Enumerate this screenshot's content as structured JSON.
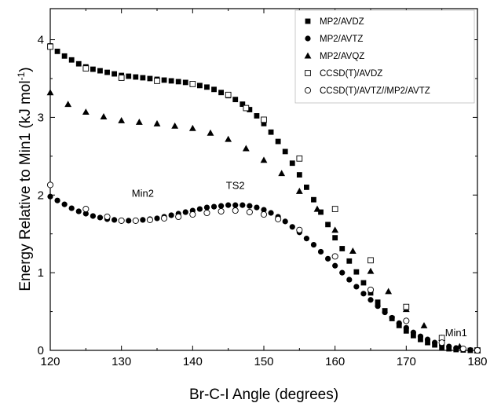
{
  "chart_data": {
    "type": "scatter",
    "xlabel": "Br-C-I Angle (degrees)",
    "ylabel_main": "Energy Relative to Min1 (kJ mol",
    "ylabel_sup": "-1",
    "ylabel_end": ")",
    "xlim": [
      120,
      180
    ],
    "ylim": [
      0,
      4.4
    ],
    "xticks": [
      120,
      130,
      140,
      150,
      160,
      170,
      180
    ],
    "yticks": [
      0,
      1,
      2,
      3,
      4
    ],
    "grid": false,
    "legend_position": "top-right",
    "annotations": [
      {
        "text": "Min2",
        "x": 133,
        "y": 1.98
      },
      {
        "text": "TS2",
        "x": 146,
        "y": 2.08
      },
      {
        "text": "Min1",
        "x": 177,
        "y": 0.18
      }
    ],
    "series": [
      {
        "name": "MP2/AVDZ",
        "marker": "filled-square",
        "x": [
          120,
          121,
          122,
          123,
          124,
          125,
          126,
          127,
          128,
          129,
          130,
          131,
          132,
          133,
          134,
          135,
          136,
          137,
          138,
          139,
          140,
          141,
          142,
          143,
          144,
          145,
          146,
          147,
          148,
          149,
          150,
          151,
          152,
          153,
          154,
          155,
          156,
          157,
          158,
          159,
          160,
          161,
          162,
          163,
          164,
          165,
          166,
          167,
          168,
          169,
          170,
          171,
          172,
          173,
          174,
          175,
          176,
          177,
          178,
          179,
          180
        ],
        "y": [
          3.92,
          3.85,
          3.79,
          3.74,
          3.69,
          3.65,
          3.62,
          3.6,
          3.58,
          3.56,
          3.54,
          3.53,
          3.52,
          3.51,
          3.5,
          3.49,
          3.48,
          3.47,
          3.46,
          3.45,
          3.43,
          3.41,
          3.39,
          3.36,
          3.32,
          3.28,
          3.23,
          3.17,
          3.1,
          3.02,
          2.92,
          2.81,
          2.69,
          2.56,
          2.41,
          2.26,
          2.1,
          1.94,
          1.78,
          1.62,
          1.45,
          1.31,
          1.15,
          1.01,
          0.87,
          0.74,
          0.62,
          0.51,
          0.41,
          0.32,
          0.25,
          0.19,
          0.14,
          0.1,
          0.07,
          0.04,
          0.02,
          0.01,
          0.005,
          0.0,
          0.0
        ]
      },
      {
        "name": "MP2/AVTZ",
        "marker": "filled-circle",
        "x": [
          120,
          121,
          122,
          123,
          124,
          125,
          126,
          127,
          128,
          129,
          130,
          131,
          132,
          133,
          134,
          135,
          136,
          137,
          138,
          139,
          140,
          141,
          142,
          143,
          144,
          145,
          146,
          147,
          148,
          149,
          150,
          151,
          152,
          153,
          154,
          155,
          156,
          157,
          158,
          159,
          160,
          161,
          162,
          163,
          164,
          165,
          166,
          167,
          168,
          169,
          170,
          171,
          172,
          173,
          174,
          175,
          176,
          177,
          178,
          179,
          180
        ],
        "y": [
          1.98,
          1.93,
          1.88,
          1.83,
          1.79,
          1.76,
          1.73,
          1.71,
          1.69,
          1.68,
          1.67,
          1.67,
          1.67,
          1.68,
          1.69,
          1.7,
          1.72,
          1.74,
          1.76,
          1.78,
          1.8,
          1.82,
          1.84,
          1.85,
          1.86,
          1.87,
          1.87,
          1.87,
          1.86,
          1.84,
          1.81,
          1.77,
          1.72,
          1.66,
          1.59,
          1.52,
          1.44,
          1.36,
          1.27,
          1.18,
          1.09,
          1.0,
          0.91,
          0.82,
          0.73,
          0.65,
          0.57,
          0.49,
          0.42,
          0.35,
          0.29,
          0.23,
          0.18,
          0.14,
          0.1,
          0.07,
          0.05,
          0.03,
          0.015,
          0.005,
          0.0
        ]
      },
      {
        "name": "MP2/AVQZ",
        "marker": "filled-triangle",
        "x": [
          120,
          122.5,
          125,
          127.5,
          130,
          132.5,
          135,
          137.5,
          140,
          142.5,
          145,
          147.5,
          150,
          152.5,
          155,
          157.5,
          160,
          162.5,
          165,
          167.5,
          170,
          172.5,
          175,
          177.5,
          180
        ],
        "y": [
          3.32,
          3.17,
          3.07,
          3.01,
          2.96,
          2.94,
          2.92,
          2.89,
          2.86,
          2.8,
          2.72,
          2.6,
          2.45,
          2.28,
          2.05,
          1.82,
          1.55,
          1.28,
          1.02,
          0.76,
          0.53,
          0.32,
          0.16,
          0.05,
          0.0
        ]
      },
      {
        "name": "CCSD(T)/AVDZ",
        "marker": "open-square",
        "x": [
          120,
          125,
          130,
          135,
          140,
          145,
          147.5,
          150,
          155,
          160,
          165,
          170,
          175,
          180
        ],
        "y": [
          3.91,
          3.63,
          3.51,
          3.47,
          3.43,
          3.29,
          3.12,
          2.97,
          2.47,
          1.82,
          1.16,
          0.56,
          0.16,
          0.0
        ]
      },
      {
        "name": "CCSD(T)/AVTZ//MP2/AVTZ",
        "marker": "open-circle",
        "x": [
          120,
          125,
          128,
          130,
          132,
          134,
          136,
          138,
          140,
          142,
          144,
          146,
          148,
          150,
          152,
          155,
          160,
          165,
          170,
          175,
          178,
          180
        ],
        "y": [
          2.13,
          1.82,
          1.72,
          1.67,
          1.67,
          1.68,
          1.7,
          1.72,
          1.75,
          1.77,
          1.79,
          1.8,
          1.78,
          1.75,
          1.69,
          1.55,
          1.21,
          0.78,
          0.38,
          0.1,
          0.02,
          0.0
        ]
      }
    ]
  }
}
